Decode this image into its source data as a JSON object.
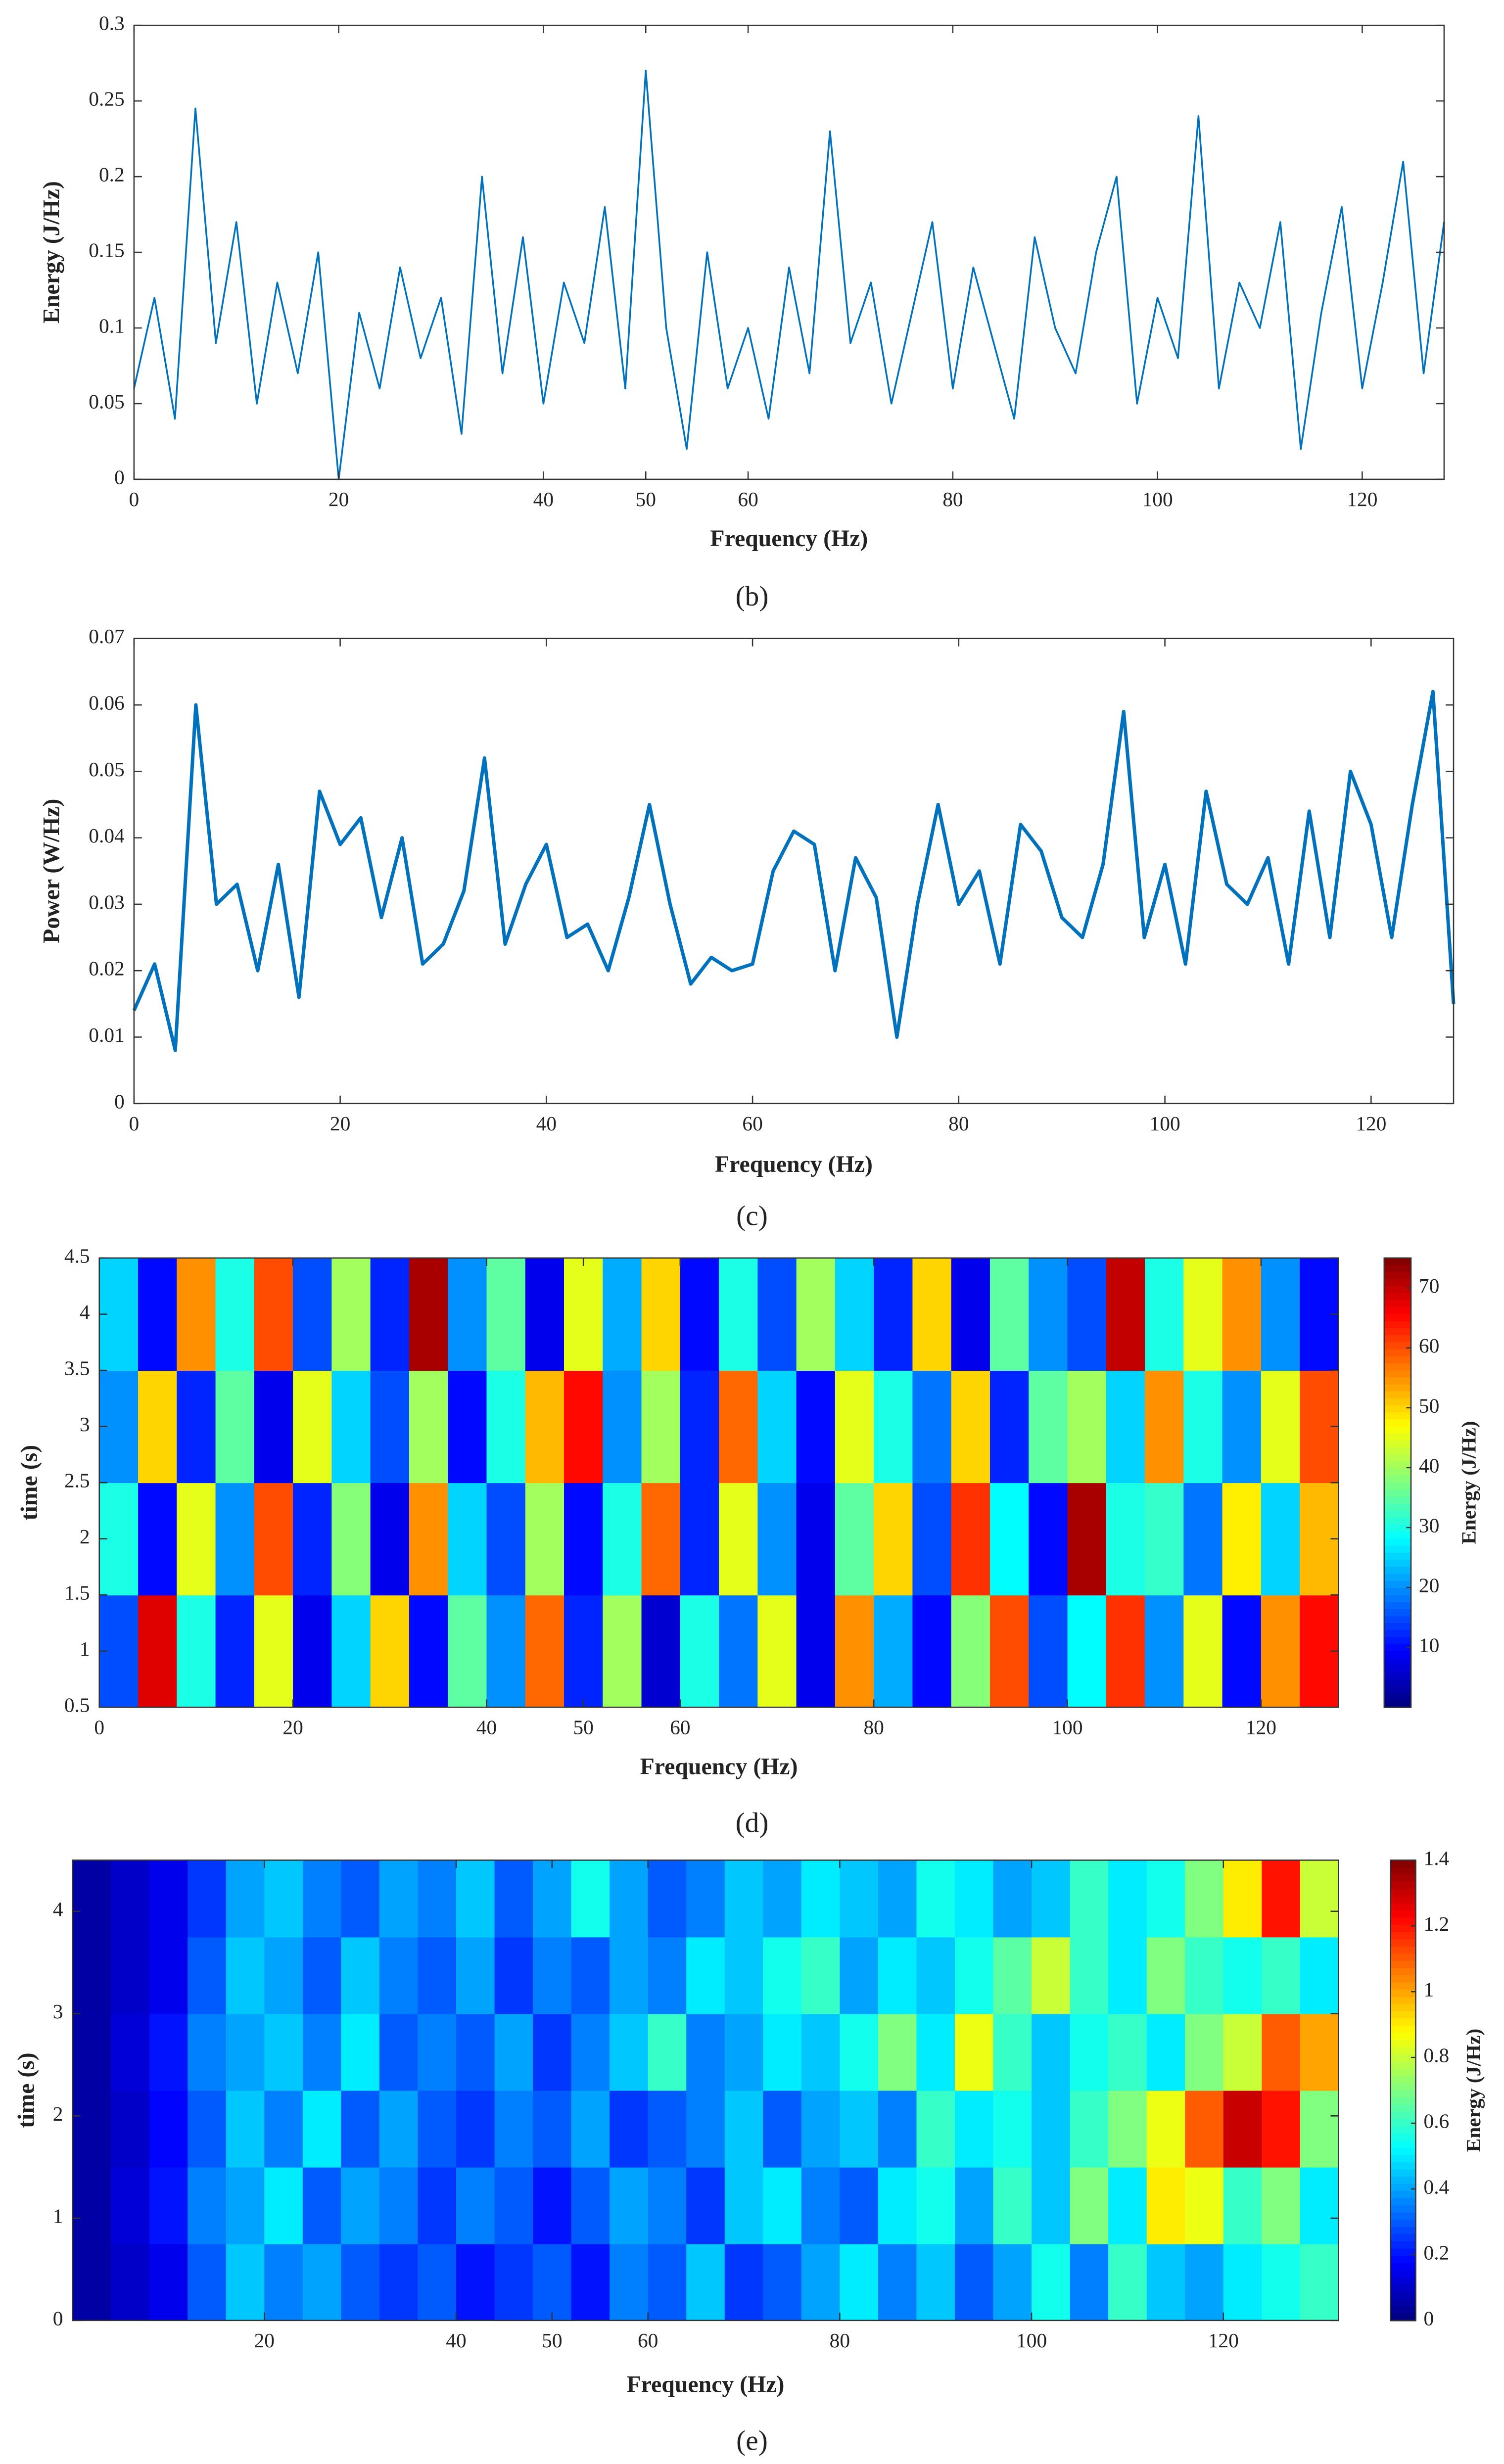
{
  "chart_data": [
    {
      "type": "line",
      "caption": "(b)",
      "xlabel": "Frequency (Hz)",
      "ylabel": "Energy (J/Hz)",
      "color": "#0072bd",
      "xlim": [
        0,
        128
      ],
      "xticks": [
        0,
        20,
        40,
        50,
        60,
        80,
        100,
        120
      ],
      "ylim": [
        0,
        0.3
      ],
      "yticks": [
        0,
        0.05,
        0.1,
        0.15,
        0.2,
        0.25,
        0.3
      ],
      "x": [
        0,
        2,
        4,
        6,
        8,
        10,
        12,
        14,
        16,
        18,
        20,
        22,
        24,
        26,
        28,
        30,
        32,
        34,
        36,
        38,
        40,
        42,
        44,
        46,
        48,
        50,
        52,
        54,
        56,
        58,
        60,
        62,
        64,
        66,
        68,
        70,
        72,
        74,
        76,
        78,
        80,
        82,
        84,
        86,
        88,
        90,
        92,
        94,
        96,
        98,
        100,
        102,
        104,
        106,
        108,
        110,
        112,
        114,
        116,
        118,
        120,
        122,
        124,
        126,
        128
      ],
      "values": [
        0.06,
        0.12,
        0.04,
        0.245,
        0.09,
        0.17,
        0.05,
        0.13,
        0.07,
        0.15,
        0.0,
        0.11,
        0.06,
        0.14,
        0.08,
        0.12,
        0.03,
        0.2,
        0.07,
        0.16,
        0.05,
        0.13,
        0.09,
        0.18,
        0.06,
        0.27,
        0.1,
        0.02,
        0.15,
        0.06,
        0.1,
        0.04,
        0.14,
        0.07,
        0.23,
        0.09,
        0.13,
        0.05,
        0.11,
        0.17,
        0.06,
        0.14,
        0.09,
        0.04,
        0.16,
        0.1,
        0.07,
        0.15,
        0.2,
        0.05,
        0.12,
        0.08,
        0.24,
        0.06,
        0.13,
        0.1,
        0.17,
        0.02,
        0.11,
        0.18,
        0.06,
        0.13,
        0.21,
        0.07,
        0.17
      ]
    },
    {
      "type": "line",
      "caption": "(c)",
      "xlabel": "Frequency (Hz)",
      "ylabel": "Power (W/Hz)",
      "color": "#0072bd",
      "xlim": [
        0,
        128
      ],
      "xticks": [
        0,
        20,
        40,
        60,
        80,
        100,
        120
      ],
      "ylim": [
        0,
        0.07
      ],
      "yticks": [
        0,
        0.01,
        0.02,
        0.03,
        0.04,
        0.05,
        0.06,
        0.07
      ],
      "x": [
        0,
        2,
        4,
        6,
        8,
        10,
        12,
        14,
        16,
        18,
        20,
        22,
        24,
        26,
        28,
        30,
        32,
        34,
        36,
        38,
        40,
        42,
        44,
        46,
        48,
        50,
        52,
        54,
        56,
        58,
        60,
        62,
        64,
        66,
        68,
        70,
        72,
        74,
        76,
        78,
        80,
        82,
        84,
        86,
        88,
        90,
        92,
        94,
        96,
        98,
        100,
        102,
        104,
        106,
        108,
        110,
        112,
        114,
        116,
        118,
        120,
        122,
        124,
        126,
        128
      ],
      "values": [
        0.014,
        0.021,
        0.008,
        0.06,
        0.03,
        0.033,
        0.02,
        0.036,
        0.016,
        0.047,
        0.039,
        0.043,
        0.028,
        0.04,
        0.021,
        0.024,
        0.032,
        0.052,
        0.024,
        0.033,
        0.039,
        0.025,
        0.027,
        0.02,
        0.031,
        0.045,
        0.03,
        0.018,
        0.022,
        0.02,
        0.021,
        0.035,
        0.041,
        0.039,
        0.02,
        0.037,
        0.031,
        0.01,
        0.03,
        0.045,
        0.03,
        0.035,
        0.021,
        0.042,
        0.038,
        0.028,
        0.025,
        0.036,
        0.059,
        0.025,
        0.036,
        0.021,
        0.047,
        0.033,
        0.03,
        0.037,
        0.021,
        0.044,
        0.025,
        0.05,
        0.042,
        0.025,
        0.045,
        0.062,
        0.015
      ]
    },
    {
      "type": "heatmap",
      "caption": "(d)",
      "xlabel": "Frequency (Hz)",
      "ylabel": "time (s)",
      "colorbar_label": "Energy (J/Hz)",
      "colormap": "jet",
      "xlim": [
        0,
        128
      ],
      "xticks": [
        0,
        20,
        40,
        50,
        60,
        80,
        100,
        120
      ],
      "ylim": [
        0.5,
        4.5
      ],
      "yticks": [
        0.5,
        1,
        1.5,
        2,
        2.5,
        3,
        3.5,
        4,
        4.5
      ],
      "clim": [
        0,
        75
      ],
      "cticks": [
        10,
        20,
        30,
        40,
        50,
        60,
        70
      ],
      "x": [
        2,
        6,
        10,
        14,
        18,
        22,
        26,
        30,
        34,
        38,
        42,
        46,
        50,
        54,
        58,
        62,
        66,
        70,
        74,
        78,
        82,
        86,
        90,
        94,
        98,
        102,
        106,
        110,
        114,
        118,
        122,
        126
      ],
      "y": [
        1,
        2,
        3,
        4
      ],
      "z": [
        [
          15,
          68,
          30,
          12,
          45,
          8,
          25,
          50,
          10,
          35,
          20,
          58,
          12,
          40,
          6,
          30,
          18,
          45,
          8,
          55,
          22,
          10,
          38,
          60,
          15,
          28,
          62,
          20,
          45,
          10,
          55,
          65
        ],
        [
          30,
          10,
          45,
          20,
          60,
          12,
          38,
          8,
          55,
          25,
          15,
          40,
          10,
          30,
          58,
          12,
          45,
          20,
          8,
          35,
          50,
          15,
          62,
          28,
          10,
          72,
          30,
          32,
          18,
          48,
          25,
          52
        ],
        [
          20,
          50,
          12,
          35,
          8,
          45,
          25,
          15,
          40,
          10,
          30,
          52,
          65,
          20,
          40,
          12,
          58,
          25,
          10,
          45,
          30,
          18,
          50,
          12,
          35,
          40,
          25,
          55,
          30,
          20,
          45,
          60
        ],
        [
          25,
          10,
          55,
          30,
          60,
          15,
          40,
          12,
          72,
          20,
          35,
          8,
          45,
          22,
          50,
          10,
          30,
          15,
          40,
          25,
          12,
          50,
          8,
          35,
          20,
          15,
          70,
          30,
          45,
          55,
          20,
          10
        ]
      ]
    },
    {
      "type": "heatmap",
      "caption": "(e)",
      "xlabel": "Frequency (Hz)",
      "ylabel": "time (s)",
      "colorbar_label": "Energy (J/Hz)",
      "colormap": "jet",
      "xlim": [
        0,
        132
      ],
      "xticks": [
        20,
        40,
        50,
        60,
        80,
        100,
        120
      ],
      "ylim": [
        0,
        4.5
      ],
      "yticks": [
        0,
        1,
        2,
        3,
        4
      ],
      "clim": [
        0,
        1.4
      ],
      "cticks": [
        0,
        0.2,
        0.4,
        0.6,
        0.8,
        1,
        1.2,
        1.4
      ],
      "x": [
        2,
        6,
        10,
        14,
        18,
        22,
        26,
        30,
        34,
        38,
        42,
        46,
        50,
        54,
        58,
        62,
        66,
        70,
        74,
        78,
        82,
        86,
        90,
        94,
        98,
        102,
        106,
        110,
        114,
        118,
        122,
        126,
        130
      ],
      "y": [
        0.375,
        1.125,
        1.875,
        2.625,
        3.375,
        4.125
      ],
      "z": [
        [
          0.05,
          0.1,
          0.15,
          0.3,
          0.45,
          0.35,
          0.4,
          0.3,
          0.25,
          0.3,
          0.2,
          0.25,
          0.3,
          0.2,
          0.35,
          0.3,
          0.45,
          0.25,
          0.3,
          0.4,
          0.5,
          0.35,
          0.45,
          0.3,
          0.4,
          0.55,
          0.35,
          0.6,
          0.45,
          0.4,
          0.5,
          0.55,
          0.6
        ],
        [
          0.05,
          0.12,
          0.2,
          0.35,
          0.4,
          0.5,
          0.3,
          0.4,
          0.35,
          0.25,
          0.35,
          0.3,
          0.2,
          0.3,
          0.4,
          0.35,
          0.25,
          0.45,
          0.5,
          0.35,
          0.3,
          0.5,
          0.55,
          0.4,
          0.6,
          0.45,
          0.7,
          0.5,
          0.9,
          0.85,
          0.6,
          0.7,
          0.5
        ],
        [
          0.05,
          0.1,
          0.18,
          0.3,
          0.45,
          0.35,
          0.5,
          0.3,
          0.4,
          0.3,
          0.25,
          0.35,
          0.3,
          0.4,
          0.25,
          0.3,
          0.35,
          0.45,
          0.3,
          0.4,
          0.45,
          0.35,
          0.6,
          0.5,
          0.55,
          0.45,
          0.6,
          0.7,
          0.85,
          1.1,
          1.3,
          1.2,
          0.7
        ],
        [
          0.05,
          0.12,
          0.2,
          0.35,
          0.4,
          0.45,
          0.35,
          0.5,
          0.3,
          0.35,
          0.3,
          0.4,
          0.25,
          0.35,
          0.45,
          0.6,
          0.35,
          0.4,
          0.5,
          0.45,
          0.55,
          0.7,
          0.5,
          0.85,
          0.6,
          0.45,
          0.55,
          0.6,
          0.5,
          0.7,
          0.8,
          1.1,
          1.0
        ],
        [
          0.05,
          0.1,
          0.15,
          0.3,
          0.45,
          0.4,
          0.3,
          0.45,
          0.35,
          0.3,
          0.4,
          0.25,
          0.35,
          0.3,
          0.4,
          0.35,
          0.5,
          0.45,
          0.55,
          0.6,
          0.4,
          0.5,
          0.45,
          0.55,
          0.65,
          0.8,
          0.6,
          0.5,
          0.7,
          0.6,
          0.55,
          0.6,
          0.5
        ],
        [
          0.05,
          0.1,
          0.15,
          0.25,
          0.4,
          0.45,
          0.35,
          0.3,
          0.4,
          0.35,
          0.45,
          0.3,
          0.4,
          0.55,
          0.4,
          0.3,
          0.35,
          0.45,
          0.4,
          0.5,
          0.45,
          0.4,
          0.55,
          0.5,
          0.4,
          0.45,
          0.6,
          0.5,
          0.55,
          0.7,
          0.9,
          1.2,
          0.8
        ]
      ]
    }
  ]
}
